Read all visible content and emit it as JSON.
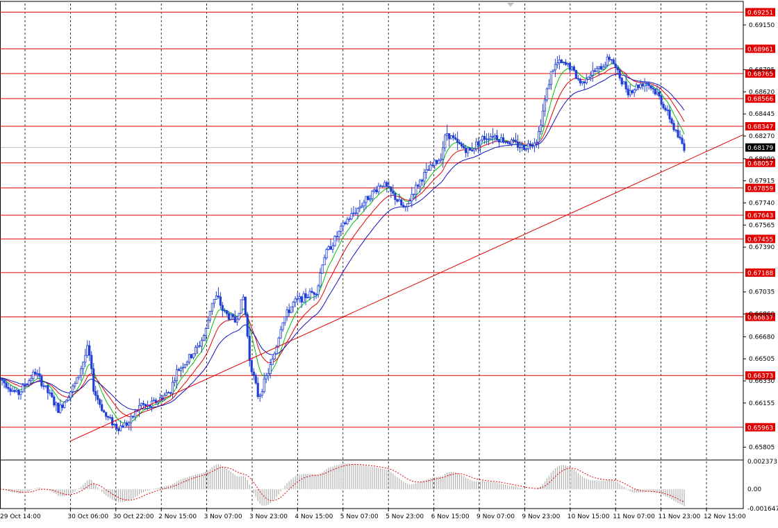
{
  "chart_data": {
    "type": "candlestick",
    "price_axis": {
      "min": 0.6572,
      "max": 0.6932,
      "ticks": [
        "0.69150",
        "0.68795",
        "0.68620",
        "0.68445",
        "0.68270",
        "0.68090",
        "0.67915",
        "0.67740",
        "0.67565",
        "0.67390",
        "0.67035",
        "0.66860",
        "0.66680",
        "0.66505",
        "0.66330",
        "0.66155",
        "0.65805"
      ]
    },
    "time_axis": {
      "labels": [
        "29 Oct 14:00",
        "30 Oct 06:00",
        "30 Oct 22:00",
        "2 Nov 15:00",
        "3 Nov 07:00",
        "3 Nov 23:00",
        "4 Nov 15:00",
        "5 Nov 07:00",
        "5 Nov 23:00",
        "6 Nov 15:00",
        "9 Nov 07:00",
        "9 Nov 23:00",
        "10 Nov 15:00",
        "11 Nov 07:00",
        "11 Nov 23:00",
        "12 Nov 15:00"
      ]
    },
    "levels": [
      "0.69251",
      "0.68961",
      "0.68765",
      "0.68566",
      "0.68347",
      "0.68057",
      "0.67859",
      "0.67643",
      "0.67455",
      "0.67188",
      "0.66837",
      "0.66373",
      "0.65963"
    ],
    "current_price": "0.68179",
    "trendline": {
      "start": [
        0,
        0.6585
      ],
      "end": [
        1,
        0.6828
      ]
    },
    "close_path": [
      [
        0,
        0.6635
      ],
      [
        0.6,
        0.6622
      ],
      [
        1.2,
        0.664
      ],
      [
        2,
        0.661
      ],
      [
        2.6,
        0.6632
      ],
      [
        3.0,
        0.666
      ],
      [
        3.2,
        0.6625
      ],
      [
        3.6,
        0.6605
      ],
      [
        4.0,
        0.6596
      ],
      [
        4.4,
        0.66
      ],
      [
        4.8,
        0.6615
      ],
      [
        5.0,
        0.6612
      ],
      [
        5.4,
        0.6618
      ],
      [
        5.8,
        0.6625
      ],
      [
        6.0,
        0.664
      ],
      [
        6.4,
        0.665
      ],
      [
        6.8,
        0.6662
      ],
      [
        7.0,
        0.6672
      ],
      [
        7.2,
        0.6695
      ],
      [
        7.4,
        0.67
      ],
      [
        7.6,
        0.6688
      ],
      [
        8.0,
        0.668
      ],
      [
        8.3,
        0.67
      ],
      [
        8.5,
        0.665
      ],
      [
        8.8,
        0.662
      ],
      [
        9.0,
        0.6632
      ],
      [
        9.3,
        0.665
      ],
      [
        9.6,
        0.668
      ],
      [
        10.0,
        0.6695
      ],
      [
        10.4,
        0.67
      ],
      [
        10.8,
        0.6705
      ],
      [
        11.0,
        0.673
      ],
      [
        11.4,
        0.6745
      ],
      [
        11.8,
        0.676
      ],
      [
        12.0,
        0.6765
      ],
      [
        12.4,
        0.6775
      ],
      [
        12.8,
        0.6785
      ],
      [
        13.0,
        0.679
      ],
      [
        13.4,
        0.678
      ],
      [
        13.8,
        0.6768
      ],
      [
        14.0,
        0.678
      ],
      [
        14.4,
        0.6795
      ],
      [
        14.8,
        0.6805
      ],
      [
        15.0,
        0.681
      ],
      [
        15.2,
        0.683
      ],
      [
        15.6,
        0.682
      ],
      [
        16.0,
        0.6815
      ],
      [
        16.4,
        0.6825
      ],
      [
        16.8,
        0.6828
      ],
      [
        17.0,
        0.6825
      ],
      [
        17.4,
        0.6822
      ],
      [
        17.8,
        0.6818
      ],
      [
        18.0,
        0.682
      ],
      [
        18.3,
        0.6825
      ],
      [
        18.6,
        0.686
      ],
      [
        18.8,
        0.688
      ],
      [
        19.0,
        0.6885
      ],
      [
        19.4,
        0.6882
      ],
      [
        19.8,
        0.6868
      ],
      [
        20.0,
        0.6875
      ],
      [
        20.4,
        0.688
      ],
      [
        20.8,
        0.689
      ],
      [
        21.0,
        0.6878
      ],
      [
        21.4,
        0.6862
      ],
      [
        21.8,
        0.6868
      ],
      [
        22.0,
        0.687
      ],
      [
        22.4,
        0.686
      ],
      [
        22.8,
        0.6842
      ],
      [
        23.0,
        0.683
      ],
      [
        23.3,
        0.6818
      ]
    ],
    "indicator": {
      "ticks": [
        "0.002373",
        "0.00",
        "-0.001647"
      ],
      "min": -0.001647,
      "max": 0.002373
    }
  }
}
